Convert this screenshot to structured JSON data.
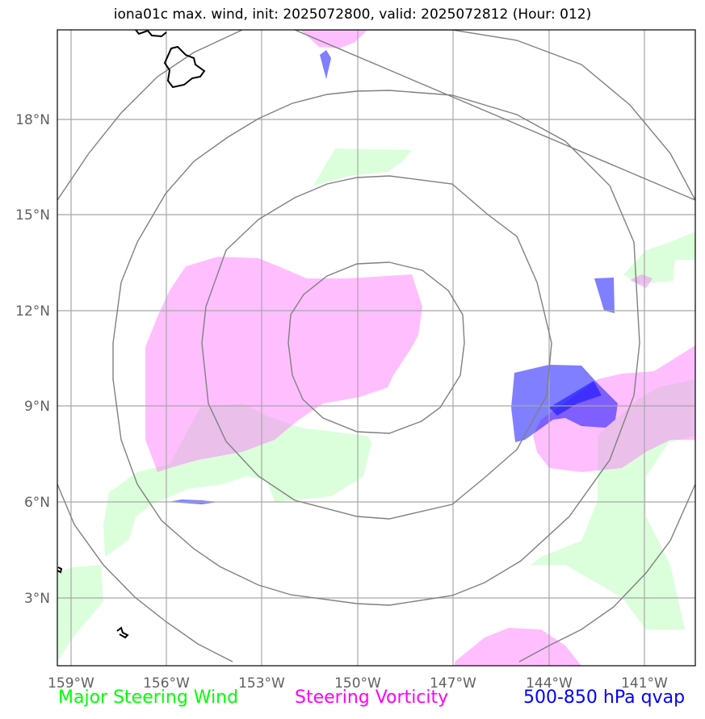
{
  "title": "iona01c max. wind, init: 2025072800, valid: 2025072812 (Hour: 012)",
  "map": {
    "lon_ticks": [
      "159°W",
      "156°W",
      "153°W",
      "150°W",
      "147°W",
      "144°W",
      "141°W"
    ],
    "lat_ticks": [
      "18°N",
      "15°N",
      "12°N",
      "9°N",
      "6°N",
      "3°N"
    ],
    "colors": {
      "wind": "#00ff00",
      "vorticity": "#ff00ff",
      "qvap": "#0000ff",
      "grid": "#808080",
      "coast": "#000000"
    }
  },
  "legend": {
    "wind": {
      "label": "Major Steering Wind",
      "color": "#00ff00"
    },
    "vorticity": {
      "label": "Steering Vorticity",
      "color": "#ff00ff"
    },
    "qvap": {
      "label": "500-850 hPa qvap",
      "color": "#0000ff"
    }
  }
}
